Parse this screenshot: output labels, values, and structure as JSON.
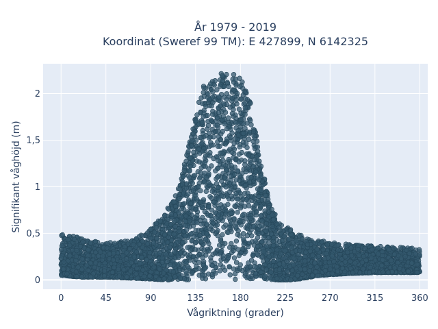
{
  "chart_data": {
    "type": "scatter",
    "title": "År 1979 - 2019",
    "subtitle": "Koordinat (Sweref 99 TM): E 427899, N 6142325",
    "xlabel": "Vågriktning (grader)",
    "ylabel": "Signifikant våghöjd (m)",
    "xlim": [
      -18,
      368
    ],
    "ylim": [
      -0.1,
      2.32
    ],
    "x_ticks": [
      0,
      45,
      90,
      135,
      180,
      225,
      270,
      315,
      360
    ],
    "x_tick_labels": [
      "0",
      "45",
      "90",
      "135",
      "180",
      "225",
      "270",
      "315",
      "360"
    ],
    "y_ticks": [
      0,
      0.5,
      1,
      1.5,
      2
    ],
    "y_tick_labels": [
      "0",
      "0,5",
      "1",
      "1,5",
      "2"
    ],
    "grid": true,
    "legend": "none",
    "colors": {
      "marker": "#34586e",
      "marker_edge": "#26475a",
      "plot_bg": "#e5ecf6",
      "grid": "#ffffff",
      "text": "#2a3f5f"
    },
    "envelope": {
      "description_direction": [
        0,
        20,
        45,
        70,
        90,
        105,
        120,
        130,
        140,
        150,
        160,
        170,
        180,
        190,
        200,
        210,
        220,
        230,
        245,
        260,
        290,
        320,
        345,
        360
      ],
      "max_height": [
        0.5,
        0.45,
        0.4,
        0.42,
        0.55,
        0.72,
        1.05,
        1.55,
        2.05,
        2.15,
        2.22,
        2.22,
        2.18,
        1.9,
        1.3,
        0.8,
        0.6,
        0.55,
        0.45,
        0.42,
        0.38,
        0.36,
        0.35,
        0.33
      ],
      "min_height": [
        0.05,
        0.03,
        0.03,
        0.02,
        0.01,
        0.0,
        0.0,
        0.0,
        0.0,
        0.0,
        0.0,
        0.0,
        0.0,
        0.0,
        0.0,
        0.0,
        0.0,
        0.0,
        0.02,
        0.05,
        0.07,
        0.08,
        0.08,
        0.08
      ]
    }
  }
}
